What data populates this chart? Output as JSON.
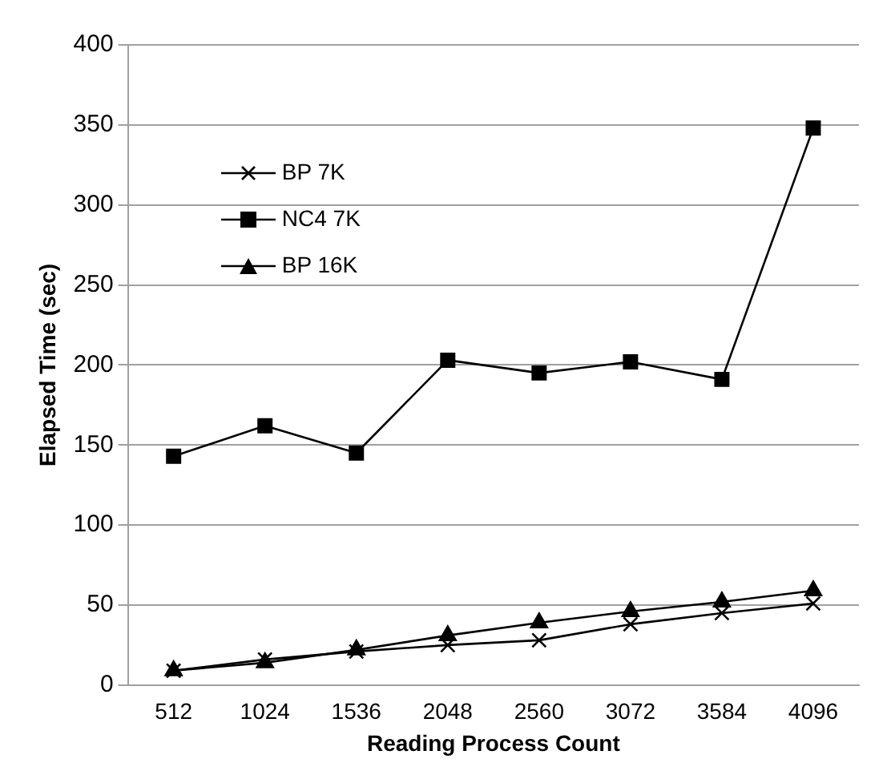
{
  "chart_data": {
    "type": "line",
    "xlabel": "Reading Process Count",
    "ylabel": "Elapsed Time (sec)",
    "categories": [
      "512",
      "1024",
      "1536",
      "2048",
      "2560",
      "3072",
      "3584",
      "4096"
    ],
    "series": [
      {
        "name": "BP 7K",
        "color": "#000000",
        "marker": "cross",
        "values": [
          9,
          16,
          21,
          25,
          28,
          38,
          45,
          51
        ]
      },
      {
        "name": "NC4 7K",
        "color": "#000000",
        "marker": "square",
        "values": [
          143,
          162,
          145,
          203,
          195,
          202,
          191,
          348
        ]
      },
      {
        "name": "BP 16K",
        "color": "#000000",
        "marker": "triangle",
        "values": [
          9,
          14,
          22,
          31,
          39,
          46,
          52,
          59
        ]
      }
    ],
    "ylim": [
      0,
      400
    ],
    "yticks": [
      0,
      50,
      100,
      150,
      200,
      250,
      300,
      350,
      400
    ],
    "grid": "y",
    "legend": "top left"
  }
}
